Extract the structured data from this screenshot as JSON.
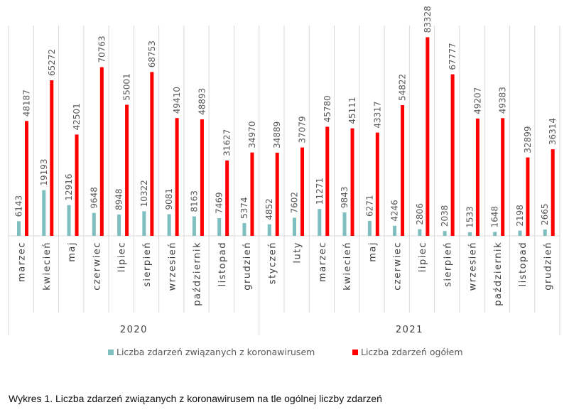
{
  "chart_data": {
    "type": "bar",
    "title": "",
    "xlabel": "",
    "ylabel": "",
    "ylim": [
      0,
      90000
    ],
    "grid": false,
    "legend_position": "bottom",
    "groups": [
      {
        "label": "2020",
        "months": [
          "marzec",
          "kwiecień",
          "maj",
          "czerwiec",
          "lipiec",
          "sierpień",
          "wrzesień",
          "październik",
          "listopad",
          "grudzień"
        ]
      },
      {
        "label": "2021",
        "months": [
          "styczeń",
          "luty",
          "marzec",
          "kwiecień",
          "maj",
          "czerwiec",
          "lipiec",
          "sierpień",
          "wrzesień",
          "październik",
          "listopad",
          "grudzień"
        ]
      }
    ],
    "categories": [
      "marzec",
      "kwiecień",
      "maj",
      "czerwiec",
      "lipiec",
      "sierpień",
      "wrzesień",
      "październik",
      "listopad",
      "grudzień",
      "styczeń",
      "luty",
      "marzec",
      "kwiecień",
      "maj",
      "czerwiec",
      "lipiec",
      "sierpień",
      "wrzesień",
      "październik",
      "listopad",
      "grudzień"
    ],
    "series": [
      {
        "name": "Liczba zdarzeń związanych z koronawirusem",
        "color": "#7fbfbf",
        "values": [
          6143,
          19193,
          12916,
          9648,
          8948,
          10322,
          9081,
          8163,
          7469,
          5374,
          4852,
          7602,
          11271,
          9843,
          6271,
          4246,
          2806,
          2038,
          1533,
          1648,
          2198,
          2665
        ]
      },
      {
        "name": "Liczba zdarzeń ogółem",
        "color": "#ff0000",
        "values": [
          48187,
          65272,
          42501,
          70763,
          55001,
          68753,
          49410,
          48893,
          31627,
          34970,
          34889,
          37079,
          45780,
          45111,
          43317,
          54822,
          83328,
          67777,
          49207,
          49383,
          32899,
          36314
        ]
      }
    ]
  },
  "caption": "Wykres 1. Liczba zdarzeń związanych z koronawirusem na tle ogólnej liczby zdarzeń"
}
